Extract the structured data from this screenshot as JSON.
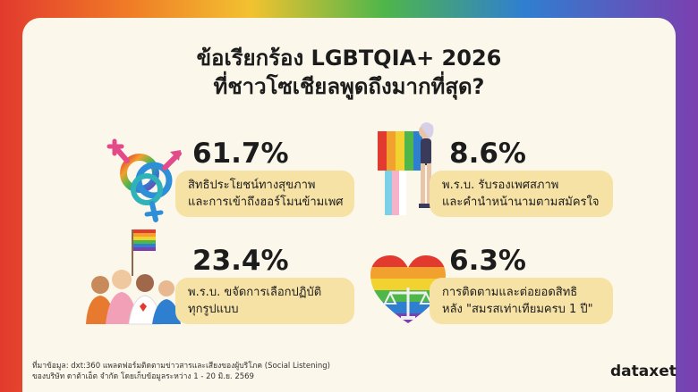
{
  "title_line1": "ข้อเรียกร้อง LGBTQIA+ 2026",
  "title_line2": "ที่ชาวโซเชียลพูดถึงมากที่สุด?",
  "items": [
    {
      "percent": "61.7%",
      "line1": "สิทธิประโยชน์ทางสุขภาพ",
      "line2": "และการเข้าถึงฮอร์โมนข้ามเพศ",
      "icon": "gender-symbols-icon"
    },
    {
      "percent": "8.6%",
      "line1": "พ.ร.บ. รับรองเพศสภาพ",
      "line2": "และคำนำหน้านามตามสมัครใจ",
      "icon": "person-with-pride-flag-icon"
    },
    {
      "percent": "23.4%",
      "line1": "พ.ร.บ. ขจัดการเลือกปฏิบัติ",
      "line2": "ทุกรูปแบบ",
      "icon": "crowd-with-pride-flag-icon"
    },
    {
      "percent": "6.3%",
      "line1": "การติดตามและต่อยอดสิทธิ",
      "line2": "หลัง \"สมรสเท่าเทียมครบ 1 ปี\"",
      "icon": "rainbow-heart-scales-icon"
    }
  ],
  "footer_line1": "ที่มาข้อมูล: dxt:360 แพลตฟอร์มติดตามข่าวสารและเสียงของผู้บริโภค (Social Listening)",
  "footer_line2": "ของบริษัท ดาต้าเอ็ต จำกัด โดยเก็บข้อมูลระหว่าง 1 - 20 มิ.ย. 2569",
  "logo": "dataxet",
  "colors": {
    "pill": "#f7e2a6",
    "card": "#fbf7ea",
    "text": "#1c1c1c"
  }
}
